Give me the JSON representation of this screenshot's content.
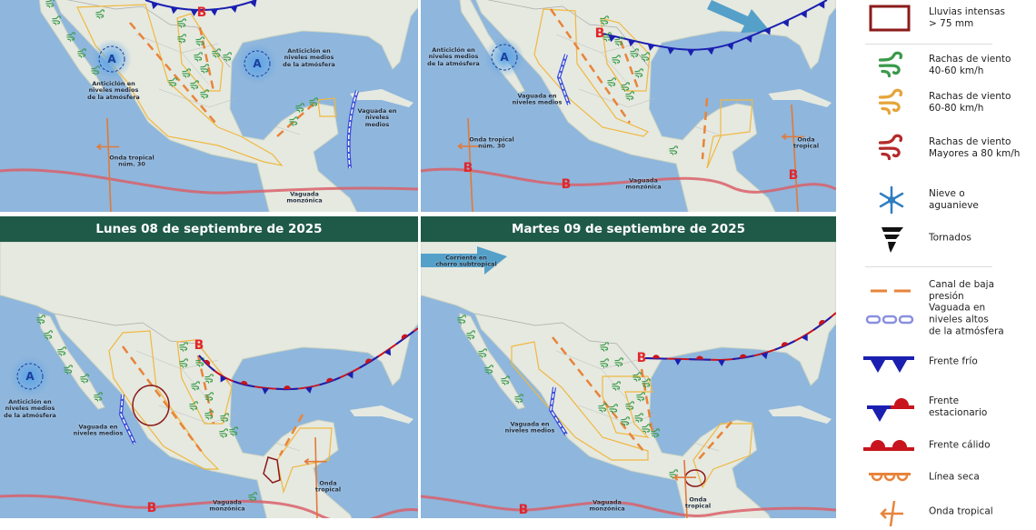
{
  "colors": {
    "header_bg": "#1f5a48",
    "ocean": "#8fb6dc",
    "land": "#e6e9e0",
    "cold_front": "#1a1fb0",
    "warm_front": "#c8141e",
    "low_trough": "#e8843a",
    "monsoon_trough": "#d9606a",
    "wind_40_60": "#3a9a4a",
    "wind_60_80": "#e6a43a",
    "wind_80": "#b52a2a",
    "heavy_rain": "#8b1a1a"
  },
  "panels": {
    "top_left": {
      "anticyclone_west": {
        "letter": "A",
        "label": "Anticiclón en\nniveles medios\nde la atmósfera"
      },
      "anticyclone_gulf": {
        "letter": "A",
        "label": "Anticiclón en\nniveles medios\nde la atmósfera"
      },
      "low": "B",
      "trough_label": "Vaguada en\nniveles medios",
      "tropical_wave_label": "Onda tropical\nnúm. 30",
      "monsoon_label": "Vaguada\nmonzónica"
    },
    "top_right": {
      "anticyclone": {
        "letter": "A",
        "label": "Anticiclón en\nniveles medios\nde la atmósfera"
      },
      "low_north": "B",
      "trough_label": "Vaguada en\nniveles medios",
      "tropical_wave_label": "Onda tropical\nnúm. 30",
      "tropical_wave_east_label": "Onda\ntropical",
      "monsoon_lows": [
        "B",
        "B",
        "B"
      ],
      "monsoon_label": "Vaguada\nmonzónica"
    },
    "bottom_left": {
      "title": "Lunes 08 de septiembre de 2025",
      "anticyclone": {
        "letter": "A",
        "label": "Anticiclón en\nniveles medios\nde la atmósfera"
      },
      "low_north": "B",
      "trough_label": "Vaguada en\nniveles medios",
      "tropical_wave_label": "Onda\ntropical",
      "monsoon_low": "B",
      "monsoon_label": "Vaguada\nmonzónica"
    },
    "bottom_right": {
      "title": "Martes 09 de septiembre de 2025",
      "jet_label": "Corriente en\nchorro subtropical",
      "low_north": "B",
      "trough_label": "Vaguada en\nniveles medios",
      "tropical_wave_label": "Onda\ntropical",
      "monsoon_low": "B",
      "monsoon_label": "Vaguada\nmonzónica"
    }
  },
  "legend": {
    "items": [
      {
        "icon": "heavy-rain-box-icon",
        "label": "Lluvias intensas\n> 75 mm"
      },
      {
        "icon": "wind-green-icon",
        "label": "Rachas de viento\n40-60 km/h"
      },
      {
        "icon": "wind-orange-icon",
        "label": "Rachas de viento\n60-80 km/h"
      },
      {
        "icon": "wind-red-icon",
        "label": "Rachas de viento\nMayores a 80 km/h"
      },
      {
        "icon": "snowflake-icon",
        "label": "Nieve o\naguanieve"
      },
      {
        "icon": "tornado-icon",
        "label": "Tornados"
      },
      {
        "icon": "low-pressure-channel-icon",
        "label": "Canal de baja\npresión"
      },
      {
        "icon": "upper-trough-icon",
        "label": "Vaguada en\nniveles altos\nde la atmósfera"
      },
      {
        "icon": "cold-front-icon",
        "label": "Frente frío"
      },
      {
        "icon": "stationary-front-icon",
        "label": "Frente\nestacionario"
      },
      {
        "icon": "warm-front-icon",
        "label": "Frente cálido"
      },
      {
        "icon": "dry-line-icon",
        "label": "Línea seca"
      },
      {
        "icon": "tropical-wave-icon",
        "label": "Onda tropical"
      }
    ]
  }
}
